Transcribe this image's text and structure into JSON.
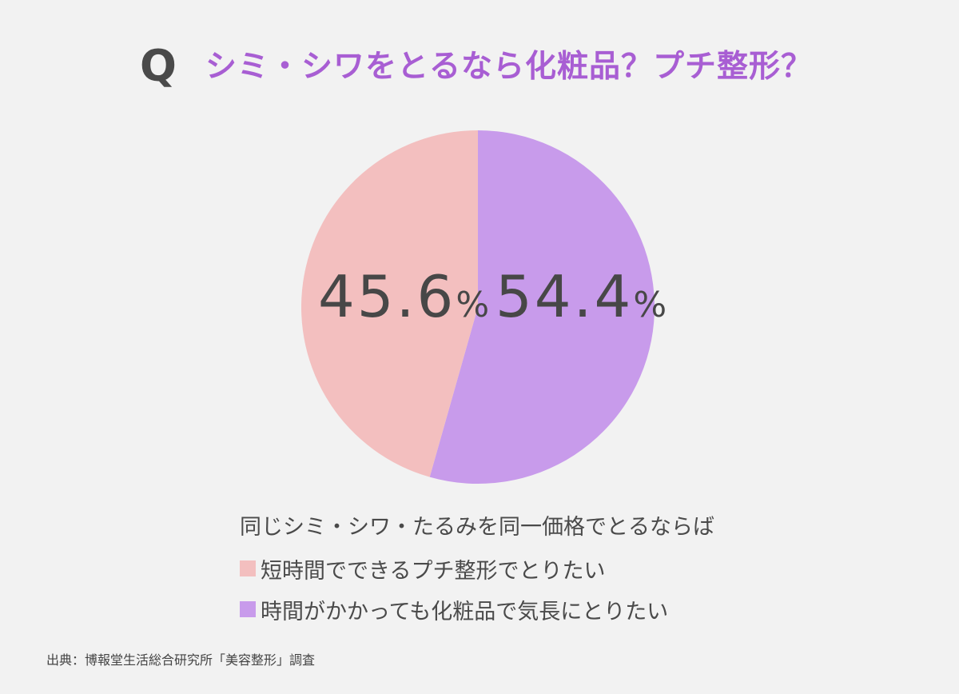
{
  "header": {
    "q_label": "Q",
    "question": "シミ・シワをとるなら化粧品？プチ整形？"
  },
  "colors": {
    "background": "#f2f2f2",
    "title": "#a85ed3",
    "pink": "#f3bfbf",
    "purple": "#c89beb",
    "text": "#474747"
  },
  "chart_data": {
    "type": "pie",
    "title": "シミ・シワをとるなら化粧品？プチ整形？",
    "subtitle": "同じシミ・シワ・たるみを同一価格でとるならば",
    "categories": [
      "短時間でできるプチ整形でとりたい",
      "時間がかかっても化粧品で気長にとりたい"
    ],
    "values": [
      45.6,
      54.4
    ],
    "unit": "%",
    "colors": [
      "#f3bfbf",
      "#c89beb"
    ],
    "start_angle": "12 o'clock, purple clockwise",
    "legend_position": "bottom"
  },
  "labels": {
    "left_value": "45.6",
    "right_value": "54.4",
    "percent_sign": "%"
  },
  "legend": {
    "heading": "同じシミ・シワ・たるみを同一価格でとるならば",
    "items": [
      {
        "label": "短時間でできるプチ整形でとりたい",
        "color": "#f3bfbf"
      },
      {
        "label": "時間がかかっても化粧品で気長にとりたい",
        "color": "#c89beb"
      }
    ]
  },
  "source": "出典：博報堂生活総合研究所「美容整形」調査"
}
